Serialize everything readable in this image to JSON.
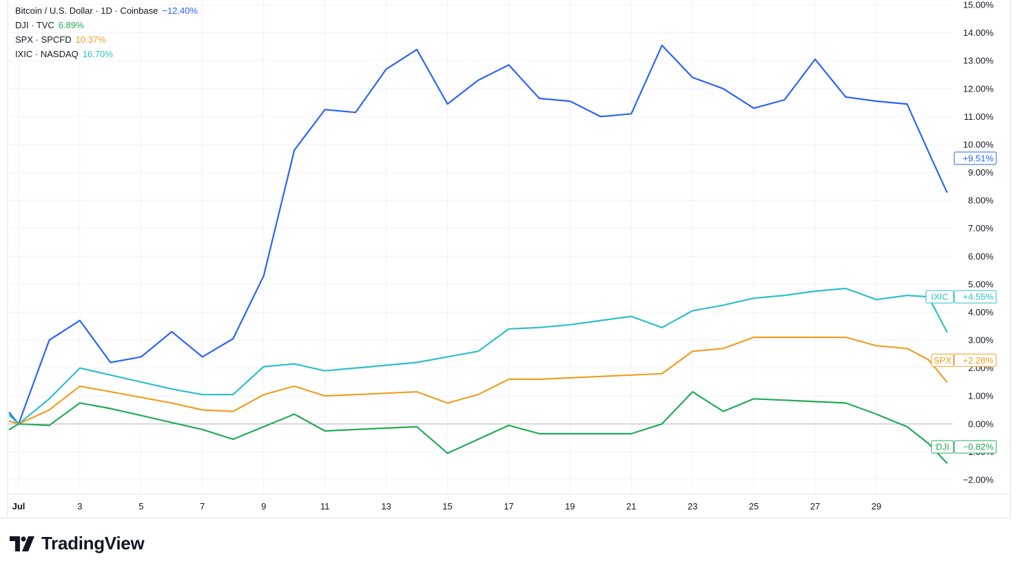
{
  "legend": [
    {
      "name": "Bitcoin / U.S. Dollar · 1D · Coinbase",
      "value": "−12.40%",
      "color": "#2962ff"
    },
    {
      "name": "DJI · TVC",
      "value": "6.89%",
      "color": "#22ab55"
    },
    {
      "name": "SPX · SPCFD",
      "value": "10.37%",
      "color": "#f29d1f"
    },
    {
      "name": "IXIC · NASDAQ",
      "value": "16.70%",
      "color": "#2bbfca"
    }
  ],
  "brand": {
    "name": "TradingView"
  },
  "chart_data": {
    "type": "line",
    "x_ticks": [
      {
        "day": 1,
        "label": "Jul"
      },
      {
        "day": 3,
        "label": "3"
      },
      {
        "day": 5,
        "label": "5"
      },
      {
        "day": 7,
        "label": "7"
      },
      {
        "day": 9,
        "label": "9"
      },
      {
        "day": 11,
        "label": "11"
      },
      {
        "day": 13,
        "label": "13"
      },
      {
        "day": 15,
        "label": "15"
      },
      {
        "day": 17,
        "label": "17"
      },
      {
        "day": 19,
        "label": "19"
      },
      {
        "day": 21,
        "label": "21"
      },
      {
        "day": 23,
        "label": "23"
      },
      {
        "day": 25,
        "label": "25"
      },
      {
        "day": 27,
        "label": "27"
      },
      {
        "day": 29,
        "label": "29"
      }
    ],
    "y_ticks": [
      {
        "value": 15,
        "label": "15.00%"
      },
      {
        "value": 14,
        "label": "14.00%"
      },
      {
        "value": 13,
        "label": "13.00%"
      },
      {
        "value": 12,
        "label": "12.00%"
      },
      {
        "value": 11,
        "label": "11.00%"
      },
      {
        "value": 10,
        "label": "10.00%"
      },
      {
        "value": 9,
        "label": "9.00%"
      },
      {
        "value": 8,
        "label": "8.00%"
      },
      {
        "value": 7,
        "label": "7.00%"
      },
      {
        "value": 6,
        "label": "6.00%"
      },
      {
        "value": 5,
        "label": "5.00%"
      },
      {
        "value": 4,
        "label": "4.00%"
      },
      {
        "value": 3,
        "label": "3.00%"
      },
      {
        "value": 2,
        "label": "2.00%"
      },
      {
        "value": 1,
        "label": "1.00%"
      },
      {
        "value": 0,
        "label": "0.00%"
      },
      {
        "value": -1,
        "label": "−1.00%"
      },
      {
        "value": -2,
        "label": "−2.00%"
      }
    ],
    "ylim": [
      -2.45,
      15.1
    ],
    "xlim": [
      0.65,
      31.6
    ],
    "series": [
      {
        "name": "Bitcoin / U.S. Dollar",
        "color": "#2962ff",
        "points": [
          [
            0.7,
            0.4
          ],
          [
            1,
            0
          ],
          [
            2,
            3.0
          ],
          [
            3,
            3.7
          ],
          [
            4,
            2.2
          ],
          [
            5,
            2.4
          ],
          [
            6,
            3.3
          ],
          [
            7,
            2.4
          ],
          [
            8,
            3.05
          ],
          [
            9,
            5.3
          ],
          [
            10,
            9.8
          ],
          [
            11,
            11.25
          ],
          [
            12,
            11.15
          ],
          [
            13,
            12.7
          ],
          [
            14,
            13.4
          ],
          [
            15,
            11.45
          ],
          [
            16,
            12.3
          ],
          [
            17,
            12.85
          ],
          [
            18,
            11.65
          ],
          [
            19,
            11.55
          ],
          [
            20,
            11.0
          ],
          [
            21,
            11.1
          ],
          [
            22,
            13.55
          ],
          [
            23,
            12.4
          ],
          [
            24,
            12.0
          ],
          [
            25,
            11.3
          ],
          [
            26,
            11.6
          ],
          [
            27,
            13.05
          ],
          [
            28,
            11.7
          ],
          [
            29,
            11.55
          ],
          [
            30,
            11.45
          ],
          [
            30.8,
            9.5
          ],
          [
            31.3,
            8.3
          ]
        ],
        "tag": "+9.51%",
        "tag_value": 9.51
      },
      {
        "name": "IXIC",
        "color": "#2bbfca",
        "points": [
          [
            0.7,
            0.3
          ],
          [
            1,
            0
          ],
          [
            2,
            0.9
          ],
          [
            3,
            2.0
          ],
          [
            4,
            1.75
          ],
          [
            5,
            1.5
          ],
          [
            6,
            1.25
          ],
          [
            7,
            1.05
          ],
          [
            8,
            1.05
          ],
          [
            9,
            2.05
          ],
          [
            10,
            2.15
          ],
          [
            11,
            1.9
          ],
          [
            12,
            2.0
          ],
          [
            13,
            2.1
          ],
          [
            14,
            2.2
          ],
          [
            15,
            2.4
          ],
          [
            16,
            2.6
          ],
          [
            17,
            3.4
          ],
          [
            18,
            3.45
          ],
          [
            19,
            3.55
          ],
          [
            20,
            3.7
          ],
          [
            21,
            3.85
          ],
          [
            22,
            3.45
          ],
          [
            23,
            4.05
          ],
          [
            24,
            4.25
          ],
          [
            25,
            4.5
          ],
          [
            26,
            4.6
          ],
          [
            27,
            4.75
          ],
          [
            28,
            4.85
          ],
          [
            29,
            4.45
          ],
          [
            30,
            4.6
          ],
          [
            30.7,
            4.55
          ],
          [
            31.3,
            3.3
          ]
        ],
        "tag": "+4.55%",
        "tag_value": 4.55,
        "tag_label": "IXIC"
      },
      {
        "name": "SPX",
        "color": "#f29d1f",
        "points": [
          [
            0.7,
            0.1
          ],
          [
            1,
            0
          ],
          [
            2,
            0.5
          ],
          [
            3,
            1.35
          ],
          [
            4,
            1.15
          ],
          [
            5,
            0.95
          ],
          [
            6,
            0.75
          ],
          [
            7,
            0.5
          ],
          [
            8,
            0.45
          ],
          [
            9,
            1.05
          ],
          [
            10,
            1.35
          ],
          [
            11,
            1.0
          ],
          [
            12,
            1.05
          ],
          [
            13,
            1.1
          ],
          [
            14,
            1.15
          ],
          [
            15,
            0.75
          ],
          [
            16,
            1.05
          ],
          [
            17,
            1.6
          ],
          [
            18,
            1.6
          ],
          [
            19,
            1.65
          ],
          [
            20,
            1.7
          ],
          [
            21,
            1.75
          ],
          [
            22,
            1.8
          ],
          [
            23,
            2.6
          ],
          [
            24,
            2.7
          ],
          [
            25,
            3.1
          ],
          [
            26,
            3.1
          ],
          [
            27,
            3.1
          ],
          [
            28,
            3.1
          ],
          [
            29,
            2.8
          ],
          [
            30,
            2.7
          ],
          [
            30.7,
            2.3
          ],
          [
            31.3,
            1.5
          ]
        ],
        "tag": "+2.28%",
        "tag_value": 2.28,
        "tag_label": "SPX"
      },
      {
        "name": "DJI",
        "color": "#22ab55",
        "points": [
          [
            0.7,
            -0.2
          ],
          [
            1,
            0
          ],
          [
            2,
            -0.05
          ],
          [
            3,
            0.75
          ],
          [
            4,
            0.55
          ],
          [
            5,
            0.3
          ],
          [
            6,
            0.05
          ],
          [
            7,
            -0.2
          ],
          [
            8,
            -0.55
          ],
          [
            9,
            -0.1
          ],
          [
            10,
            0.35
          ],
          [
            11,
            -0.25
          ],
          [
            12,
            -0.2
          ],
          [
            13,
            -0.15
          ],
          [
            14,
            -0.1
          ],
          [
            15,
            -1.05
          ],
          [
            16,
            -0.55
          ],
          [
            17,
            -0.05
          ],
          [
            18,
            -0.35
          ],
          [
            19,
            -0.35
          ],
          [
            20,
            -0.35
          ],
          [
            21,
            -0.35
          ],
          [
            22,
            0.0
          ],
          [
            23,
            1.15
          ],
          [
            24,
            0.45
          ],
          [
            25,
            0.9
          ],
          [
            26,
            0.85
          ],
          [
            27,
            0.8
          ],
          [
            28,
            0.75
          ],
          [
            29,
            0.35
          ],
          [
            30,
            -0.1
          ],
          [
            30.7,
            -0.7
          ],
          [
            31.3,
            -1.4
          ]
        ],
        "tag": "−0.82%",
        "tag_value": -0.82,
        "tag_label": "DJI"
      }
    ],
    "grid": true
  }
}
